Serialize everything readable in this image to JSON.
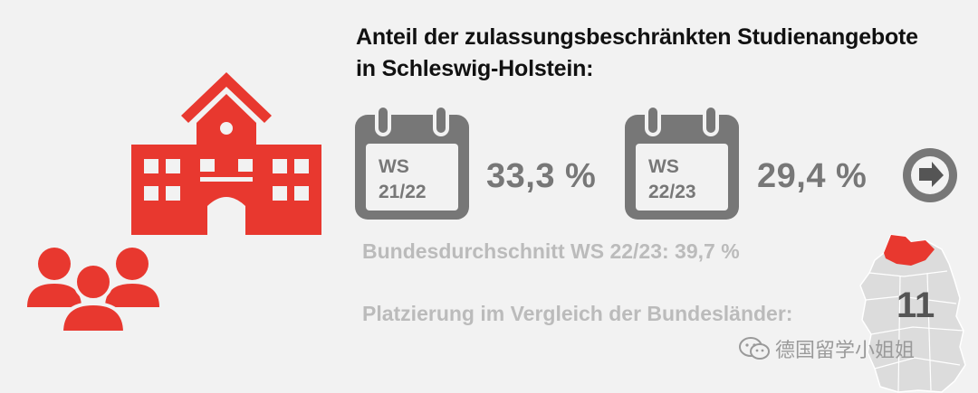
{
  "title_line1": "Anteil der zulassungsbeschränkten Studienangebote",
  "title_line2": "in Schleswig-Holstein:",
  "semesters": [
    {
      "label_top": "WS",
      "label_bottom": "21/22",
      "value": "33,3 %"
    },
    {
      "label_top": "WS",
      "label_bottom": "22/23",
      "value": "29,4 %"
    }
  ],
  "federal_average": "Bundesdurchschnitt WS 22/23: 39,7 %",
  "ranking_label": "Platzierung im Vergleich der Bundesländer:",
  "ranking_value": "11",
  "watermark": "德国留学小姐姐",
  "colors": {
    "accent_red": "#e8382f",
    "grey": "#777777",
    "light_grey": "#bbbbbb",
    "background": "#f2f2f2"
  },
  "icons": [
    "school-building-icon",
    "people-group-icon",
    "calendar-icon",
    "arrow-right-circle-icon",
    "germany-map-icon",
    "wechat-icon"
  ]
}
